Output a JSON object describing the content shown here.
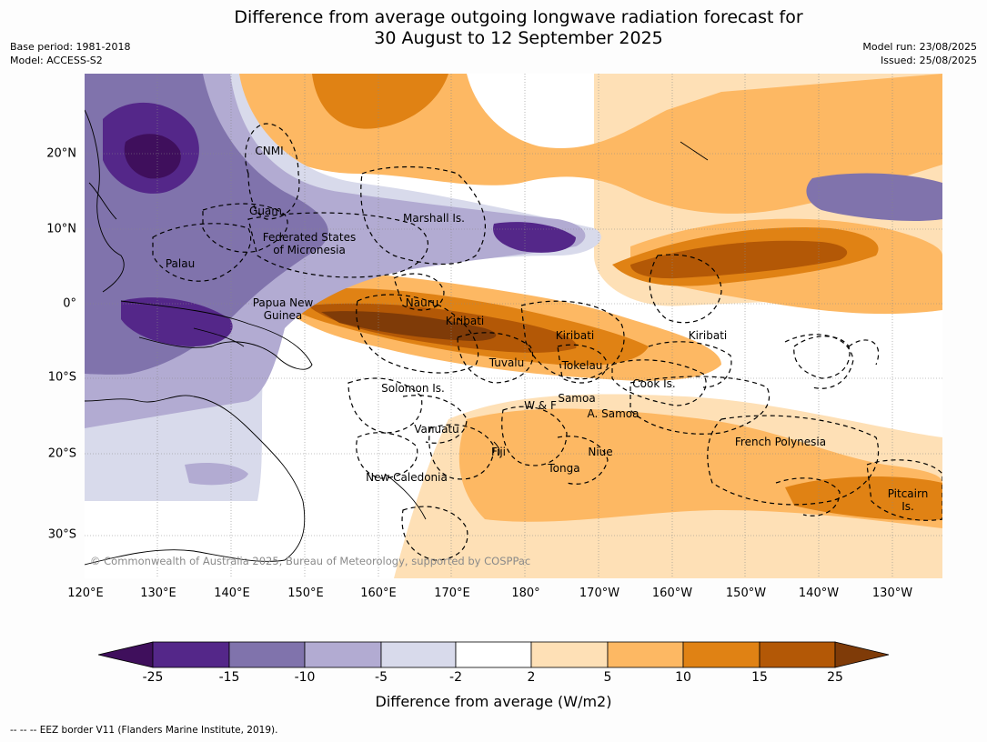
{
  "title": {
    "line1": "Difference from average outgoing longwave radiation forecast for",
    "line2": "30 August to 12 September 2025"
  },
  "meta": {
    "base_period": "Base period: 1981-2018",
    "model": "Model: ACCESS-S2",
    "model_run": "Model run: 23/08/2025",
    "issued": "Issued: 25/08/2025"
  },
  "map": {
    "copyright": "© Commonwealth of Australia 2025, Bureau of Meteorology, supported by COSPPac",
    "places": [
      {
        "text": "CNMI"
      },
      {
        "text": "Guam"
      },
      {
        "text": "Marshall Is."
      },
      {
        "text": "Federated States\nof Micronesia"
      },
      {
        "text": "Palau"
      },
      {
        "text": "Papua New\nGuinea"
      },
      {
        "text": "Nauru"
      },
      {
        "text": "Kiribati"
      },
      {
        "text": "Kiribati"
      },
      {
        "text": "Kiribati"
      },
      {
        "text": "Tuvalu"
      },
      {
        "text": "Tokelau"
      },
      {
        "text": "Cook Is."
      },
      {
        "text": "Solomon Is."
      },
      {
        "text": "W & F"
      },
      {
        "text": "Samoa"
      },
      {
        "text": "A. Samoa"
      },
      {
        "text": "Vanuatu"
      },
      {
        "text": "Fiji"
      },
      {
        "text": "Niue"
      },
      {
        "text": "Tonga"
      },
      {
        "text": "New Caledonia"
      },
      {
        "text": "French Polynesia"
      },
      {
        "text": "Pitcairn\nIs."
      }
    ],
    "lat_labels": [
      "20°N",
      "10°N",
      "0°",
      "10°S",
      "20°S",
      "30°S"
    ],
    "lon_labels": [
      "120°E",
      "130°E",
      "140°E",
      "150°E",
      "160°E",
      "170°E",
      "180°",
      "170°W",
      "160°W",
      "150°W",
      "140°W",
      "130°W"
    ]
  },
  "colorbar": {
    "ticks": [
      "-25",
      "-15",
      "-10",
      "-5",
      "-2",
      "2",
      "5",
      "10",
      "15",
      "25"
    ],
    "colors": [
      "#3f0f5c",
      "#542789",
      "#8073ac",
      "#b2abd2",
      "#d8daeb",
      "#ffffff",
      "#fee0b6",
      "#fdb863",
      "#e08214",
      "#b35806",
      "#7f3b08"
    ],
    "label": "Difference from average (W/m2)"
  },
  "footer": "--  --  -- EEZ border V11 (Flanders Marine Institute, 2019)."
}
